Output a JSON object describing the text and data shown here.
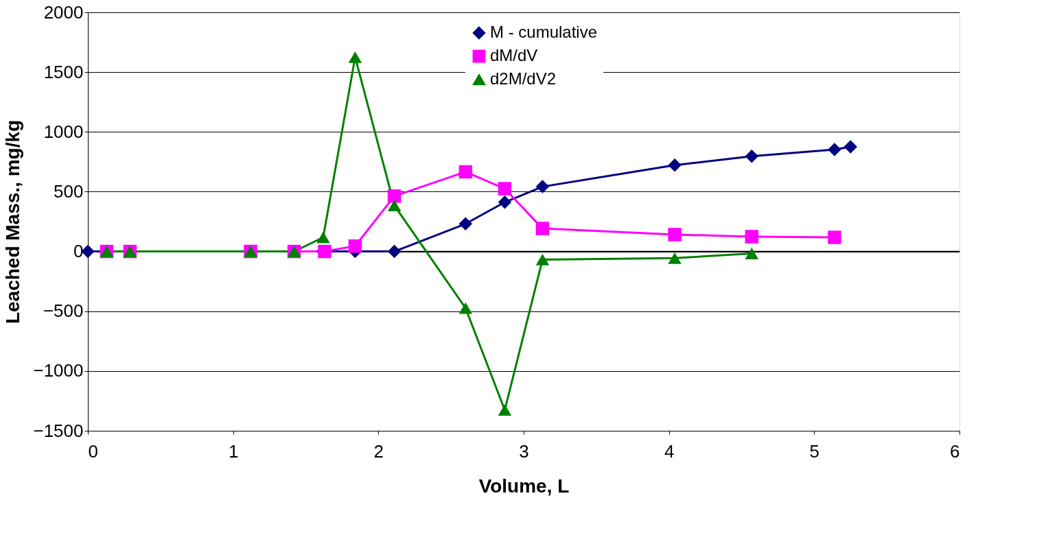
{
  "chart_data": {
    "type": "line",
    "xlabel": "Volume, L",
    "ylabel": "Leached Mass., mg/kg",
    "xlim": [
      0,
      6
    ],
    "xticks": [
      0,
      1,
      2,
      3,
      4,
      5,
      6
    ],
    "ylim": [
      -1500,
      2000
    ],
    "yticks": [
      -1500,
      -1000,
      -500,
      0,
      500,
      1000,
      1500,
      2000
    ],
    "grid": "y",
    "legend": "top right",
    "series": [
      {
        "name": "M - cumulative",
        "color": "#000080",
        "marker": "diamond",
        "x": [
          0,
          1.62,
          1.84,
          2.11,
          2.6,
          2.87,
          3.13,
          4.04,
          4.57,
          5.14,
          5.25
        ],
        "values": [
          0,
          0,
          0,
          0,
          231,
          412,
          542,
          722,
          796,
          852,
          875
        ]
      },
      {
        "name": "dM/dV",
        "color": "#ff00ff",
        "marker": "square",
        "x": [
          0.13,
          0.29,
          1.12,
          1.42,
          1.63,
          1.84,
          2.11,
          2.6,
          2.87,
          3.13,
          4.04,
          4.57,
          5.14
        ],
        "values": [
          0,
          0,
          0,
          0,
          0,
          45,
          463,
          666,
          525,
          192,
          141,
          124,
          118
        ]
      },
      {
        "name": "d2M/dV2",
        "color": "#008000",
        "marker": "triangle",
        "x": [
          0.13,
          0.29,
          1.12,
          1.42,
          1.62,
          1.84,
          2.11,
          2.6,
          2.87,
          3.13,
          4.04,
          4.57
        ],
        "values": [
          0,
          0,
          0,
          0,
          118,
          1625,
          384,
          -474,
          -1326,
          -68,
          -56,
          -17
        ]
      }
    ]
  }
}
